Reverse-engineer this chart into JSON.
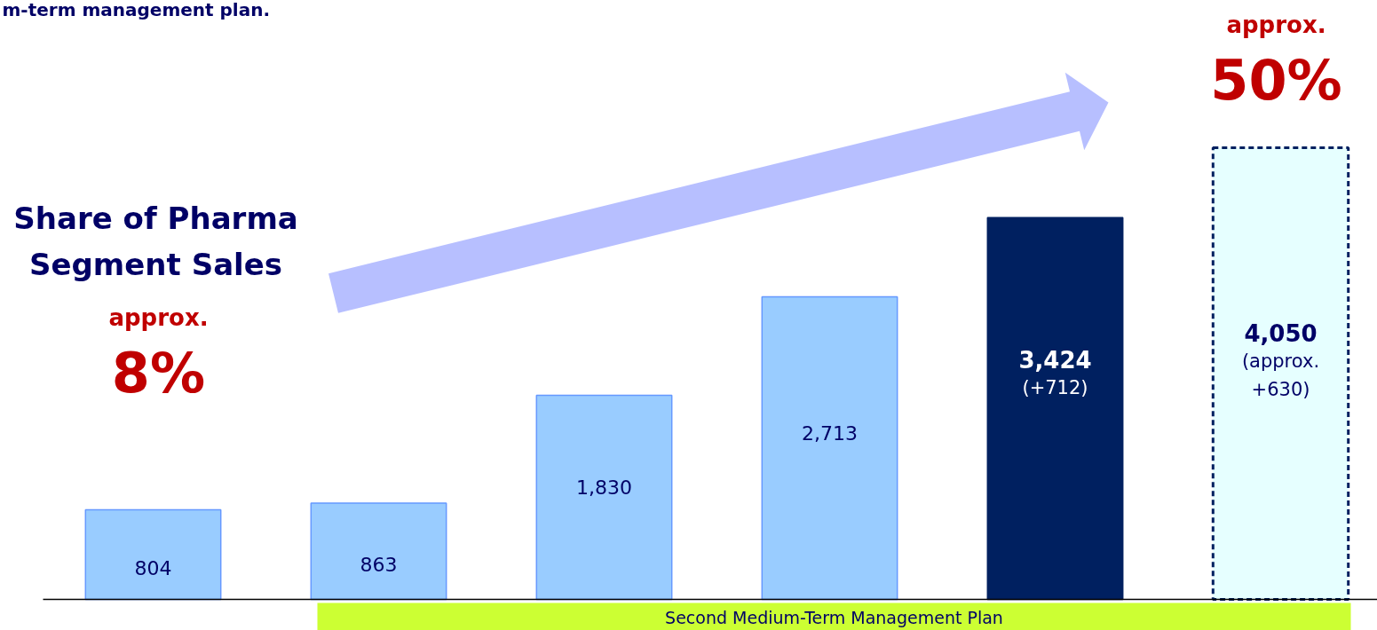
{
  "chart_data": {
    "type": "bar",
    "title": "m-term management plan.",
    "categories": [
      null,
      null,
      null,
      null,
      null,
      null
    ],
    "values": [
      804,
      863,
      1830,
      2713,
      3424,
      4050
    ],
    "colors": [
      "#99ccff",
      "#99ccff",
      "#99ccff",
      "#99ccff",
      "#002060",
      "#e6ffff"
    ],
    "value_labels": [
      "804",
      "863",
      "1,830",
      "2,713",
      "3,424\n(+712)",
      "4,050\n(approx.\n+630)"
    ],
    "annotations": [
      "Share of Pharma\nSegment Sales",
      "approx.",
      "8%",
      "approx.",
      "50%",
      "Second Medium-Term Management Plan"
    ],
    "grid": false
  }
}
